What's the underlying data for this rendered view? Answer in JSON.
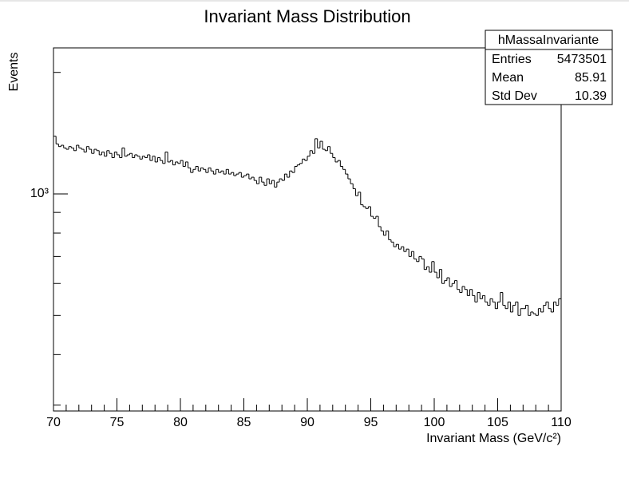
{
  "chart_data": {
    "type": "histogram",
    "title": "Invariant Mass Distribution",
    "x_label": "Invariant Mass (GeV/c²)",
    "y_label": "Events",
    "log_y": true,
    "color": "#000000",
    "xlim": [
      70,
      110
    ],
    "xticks": [
      70,
      75,
      80,
      85,
      90,
      95,
      100,
      105,
      110
    ],
    "ylim": [
      290,
      2300
    ],
    "yticks": [
      {
        "value": 1000,
        "label": "10³"
      }
    ],
    "yminor_ticks": [
      300,
      400,
      500,
      600,
      700,
      800,
      900,
      2000
    ],
    "bins": [
      70,
      70.2,
      70.4,
      70.6,
      70.8,
      71,
      71.2,
      71.4,
      71.6,
      71.8,
      72,
      72.2,
      72.4,
      72.6,
      72.8,
      73,
      73.2,
      73.4,
      73.6,
      73.8,
      74,
      74.2,
      74.4,
      74.6,
      74.8,
      75,
      75.2,
      75.4,
      75.6,
      75.8,
      76,
      76.2,
      76.4,
      76.6,
      76.8,
      77,
      77.2,
      77.4,
      77.6,
      77.8,
      78,
      78.2,
      78.4,
      78.6,
      78.8,
      79,
      79.2,
      79.4,
      79.6,
      79.8,
      80,
      80.2,
      80.4,
      80.6,
      80.8,
      81,
      81.2,
      81.4,
      81.6,
      81.8,
      82,
      82.2,
      82.4,
      82.6,
      82.8,
      83,
      83.2,
      83.4,
      83.6,
      83.8,
      84,
      84.2,
      84.4,
      84.6,
      84.8,
      85,
      85.2,
      85.4,
      85.6,
      85.8,
      86,
      86.2,
      86.4,
      86.6,
      86.8,
      87,
      87.2,
      87.4,
      87.6,
      87.8,
      88,
      88.2,
      88.4,
      88.6,
      88.8,
      89,
      89.2,
      89.4,
      89.6,
      89.8,
      90,
      90.2,
      90.4,
      90.6,
      90.8,
      91,
      91.2,
      91.4,
      91.6,
      91.8,
      92,
      92.2,
      92.4,
      92.6,
      92.8,
      93,
      93.2,
      93.4,
      93.6,
      93.8,
      94,
      94.2,
      94.4,
      94.6,
      94.8,
      95,
      95.2,
      95.4,
      95.6,
      95.8,
      96,
      96.2,
      96.4,
      96.6,
      96.8,
      97,
      97.2,
      97.4,
      97.6,
      97.8,
      98,
      98.2,
      98.4,
      98.6,
      98.8,
      99,
      99.2,
      99.4,
      99.6,
      99.8,
      100,
      100.2,
      100.4,
      100.6,
      100.8,
      101,
      101.2,
      101.4,
      101.6,
      101.8,
      102,
      102.2,
      102.4,
      102.6,
      102.8,
      103,
      103.2,
      103.4,
      103.6,
      103.8,
      104,
      104.2,
      104.4,
      104.6,
      104.8,
      105,
      105.2,
      105.4,
      105.6,
      105.8,
      106,
      106.2,
      106.4,
      106.6,
      106.8,
      107,
      107.2,
      107.4,
      107.6,
      107.8,
      108,
      108.2,
      108.4,
      108.6,
      108.8,
      109,
      109.2,
      109.4,
      109.6,
      109.8,
      110
    ],
    "values": [
      1390,
      1330,
      1310,
      1320,
      1300,
      1290,
      1310,
      1300,
      1280,
      1320,
      1300,
      1290,
      1270,
      1310,
      1290,
      1260,
      1290,
      1280,
      1250,
      1270,
      1240,
      1280,
      1260,
      1230,
      1270,
      1250,
      1230,
      1300,
      1240,
      1250,
      1260,
      1230,
      1250,
      1240,
      1220,
      1240,
      1230,
      1250,
      1210,
      1240,
      1200,
      1230,
      1210,
      1190,
      1270,
      1200,
      1210,
      1180,
      1200,
      1190,
      1210,
      1170,
      1200,
      1160,
      1130,
      1150,
      1170,
      1140,
      1160,
      1150,
      1130,
      1160,
      1140,
      1120,
      1150,
      1130,
      1140,
      1120,
      1150,
      1120,
      1130,
      1110,
      1120,
      1130,
      1100,
      1110,
      1120,
      1090,
      1100,
      1080,
      1060,
      1100,
      1070,
      1050,
      1090,
      1060,
      1080,
      1040,
      1070,
      1090,
      1080,
      1120,
      1100,
      1140,
      1130,
      1170,
      1180,
      1190,
      1220,
      1210,
      1240,
      1280,
      1260,
      1370,
      1300,
      1350,
      1290,
      1280,
      1310,
      1260,
      1230,
      1200,
      1210,
      1170,
      1150,
      1120,
      1090,
      1060,
      1030,
      990,
      1010,
      940,
      930,
      920,
      930,
      880,
      870,
      880,
      830,
      810,
      790,
      810,
      770,
      760,
      740,
      750,
      730,
      740,
      720,
      730,
      700,
      720,
      690,
      680,
      700,
      690,
      650,
      660,
      640,
      680,
      640,
      620,
      650,
      600,
      610,
      620,
      590,
      600,
      610,
      580,
      570,
      590,
      580,
      560,
      580,
      560,
      540,
      570,
      550,
      560,
      540,
      530,
      550,
      540,
      520,
      540,
      570,
      530,
      520,
      540,
      510,
      530,
      540,
      500,
      520,
      520,
      530,
      500,
      510,
      505,
      500,
      520,
      510,
      530,
      540,
      520,
      510,
      540,
      530,
      550
    ],
    "stats": {
      "title": "hMassaInvariante",
      "rows": [
        {
          "label": "Entries",
          "value": 5473501
        },
        {
          "label": "Mean",
          "value": 85.91
        },
        {
          "label": "Std Dev",
          "value": 10.39
        }
      ]
    }
  }
}
